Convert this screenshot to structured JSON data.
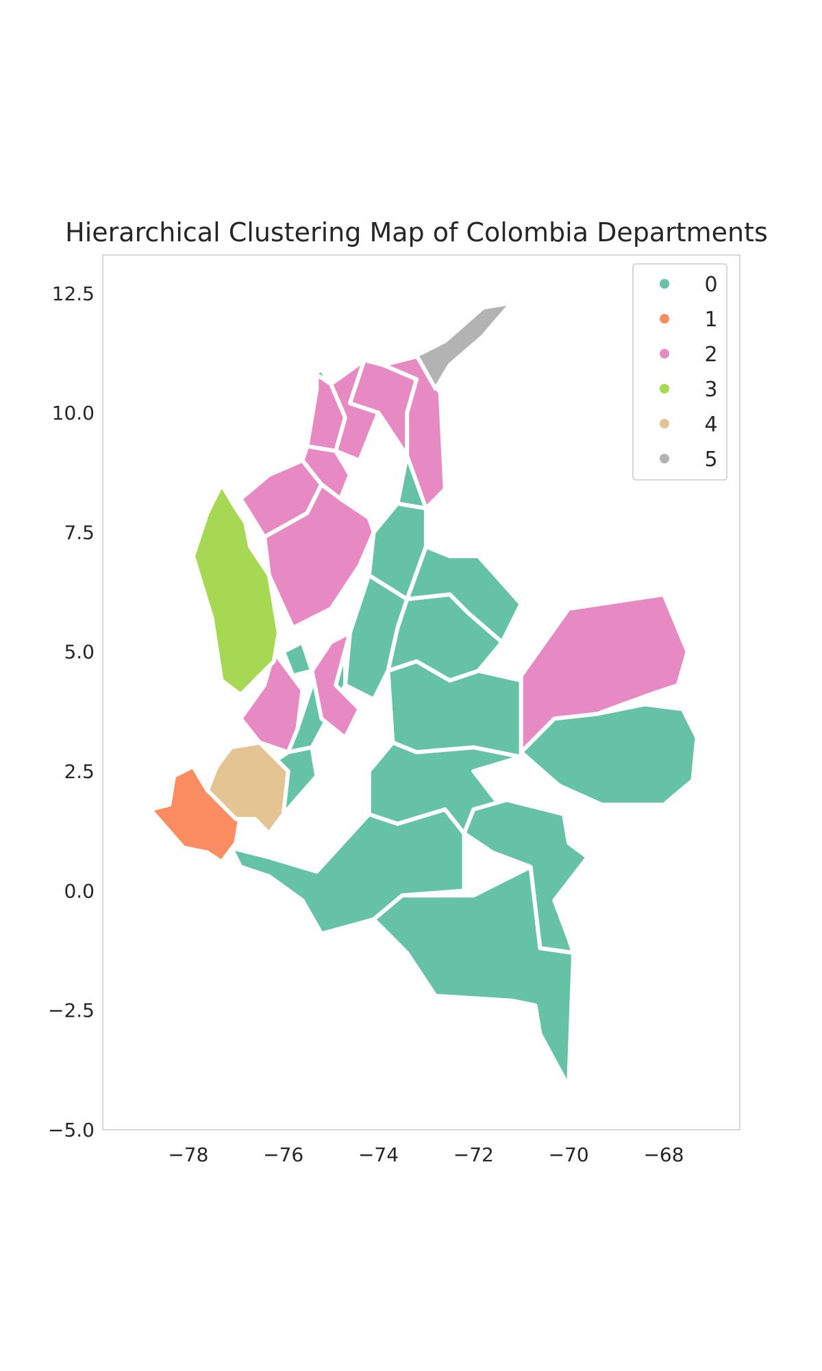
{
  "chart_data": {
    "type": "map",
    "title": "Hierarchical Clustering Map of Colombia Departments",
    "xlabel": "",
    "ylabel": "",
    "xlim": [
      -79.8,
      -66.4
    ],
    "ylim": [
      -5.0,
      13.3
    ],
    "x_ticks": [
      {
        "value": -78,
        "label": "−78"
      },
      {
        "value": -76,
        "label": "−76"
      },
      {
        "value": -74,
        "label": "−74"
      },
      {
        "value": -72,
        "label": "−72"
      },
      {
        "value": -70,
        "label": "−70"
      },
      {
        "value": -68,
        "label": "−68"
      }
    ],
    "y_ticks": [
      {
        "value": -5.0,
        "label": "−5.0"
      },
      {
        "value": -2.5,
        "label": "−2.5"
      },
      {
        "value": 0.0,
        "label": "0.0"
      },
      {
        "value": 2.5,
        "label": "2.5"
      },
      {
        "value": 5.0,
        "label": "5.0"
      },
      {
        "value": 7.5,
        "label": "7.5"
      },
      {
        "value": 10.0,
        "label": "10.0"
      },
      {
        "value": 12.5,
        "label": "12.5"
      }
    ],
    "grid": false,
    "legend_position": "top-right",
    "clusters": [
      {
        "label": "0",
        "color": "#66c2a5"
      },
      {
        "label": "1",
        "color": "#fc8d62"
      },
      {
        "label": "2",
        "color": "#e78ac3"
      },
      {
        "label": "3",
        "color": "#a6d854"
      },
      {
        "label": "4",
        "color": "#e5c494"
      },
      {
        "label": "5",
        "color": "#b3b3b3"
      }
    ],
    "regions": [
      {
        "cluster": 0,
        "coords": [
          [
            -75.6,
            -0.2
          ],
          [
            -75.2,
            -0.9
          ],
          [
            -74.1,
            -0.6
          ],
          [
            -73.5,
            -0.1
          ],
          [
            -72.2,
            0.0
          ],
          [
            -72.2,
            1.2
          ],
          [
            -72.6,
            1.7
          ],
          [
            -73.6,
            1.4
          ],
          [
            -74.2,
            1.6
          ],
          [
            -75.3,
            0.4
          ],
          [
            -76.3,
            0.7
          ],
          [
            -77.1,
            0.9
          ],
          [
            -76.9,
            0.5
          ],
          [
            -76.3,
            0.3
          ],
          [
            -75.6,
            -0.2
          ]
        ]
      },
      {
        "cluster": 0,
        "coords": [
          [
            -74.1,
            -0.6
          ],
          [
            -73.4,
            -1.3
          ],
          [
            -72.8,
            -2.2
          ],
          [
            -71.2,
            -2.3
          ],
          [
            -70.7,
            -2.4
          ],
          [
            -70.6,
            -3.0
          ],
          [
            -70.0,
            -4.1
          ],
          [
            -69.9,
            -1.3
          ],
          [
            -70.6,
            -1.2
          ],
          [
            -70.8,
            0.5
          ],
          [
            -72.0,
            -0.1
          ],
          [
            -73.5,
            -0.1
          ],
          [
            -74.1,
            -0.6
          ]
        ]
      },
      {
        "cluster": 0,
        "coords": [
          [
            -74.2,
            1.6
          ],
          [
            -73.6,
            1.4
          ],
          [
            -72.6,
            1.7
          ],
          [
            -72.2,
            1.2
          ],
          [
            -71.6,
            0.8
          ],
          [
            -71.3,
            1.6
          ],
          [
            -72.0,
            2.5
          ],
          [
            -71.0,
            2.8
          ],
          [
            -72.0,
            3.0
          ],
          [
            -73.2,
            2.9
          ],
          [
            -73.7,
            3.1
          ],
          [
            -74.2,
            2.5
          ],
          [
            -74.2,
            1.6
          ]
        ]
      },
      {
        "cluster": 0,
        "coords": [
          [
            -72.2,
            1.2
          ],
          [
            -71.6,
            0.8
          ],
          [
            -70.8,
            0.5
          ],
          [
            -70.6,
            -1.2
          ],
          [
            -69.9,
            -1.3
          ],
          [
            -70.0,
            -1.0
          ],
          [
            -70.3,
            -0.2
          ],
          [
            -69.6,
            0.7
          ],
          [
            -70.0,
            1.0
          ],
          [
            -70.1,
            1.6
          ],
          [
            -71.3,
            1.9
          ],
          [
            -72.0,
            1.7
          ],
          [
            -72.2,
            1.2
          ]
        ]
      },
      {
        "cluster": 0,
        "coords": [
          [
            -73.7,
            3.1
          ],
          [
            -73.2,
            2.9
          ],
          [
            -72.0,
            3.0
          ],
          [
            -71.0,
            2.8
          ],
          [
            -71.0,
            4.4
          ],
          [
            -71.9,
            4.6
          ],
          [
            -72.5,
            4.4
          ],
          [
            -73.2,
            4.8
          ],
          [
            -73.8,
            4.6
          ],
          [
            -73.7,
            3.1
          ]
        ]
      },
      {
        "cluster": 0,
        "coords": [
          [
            -71.0,
            2.9
          ],
          [
            -70.2,
            2.2
          ],
          [
            -69.3,
            1.8
          ],
          [
            -68.0,
            1.8
          ],
          [
            -67.4,
            2.3
          ],
          [
            -67.2,
            1.9
          ],
          [
            -67.0,
            1.3
          ],
          [
            -67.4,
            2.2
          ],
          [
            -67.3,
            3.2
          ],
          [
            -67.6,
            3.8
          ],
          [
            -68.4,
            3.9
          ],
          [
            -69.4,
            3.7
          ],
          [
            -70.3,
            3.6
          ],
          [
            -71.0,
            2.9
          ]
        ]
      },
      {
        "cluster": 0,
        "coords": [
          [
            -73.8,
            4.6
          ],
          [
            -73.2,
            4.8
          ],
          [
            -72.5,
            4.4
          ],
          [
            -71.9,
            4.6
          ],
          [
            -71.4,
            5.2
          ],
          [
            -72.1,
            5.8
          ],
          [
            -72.5,
            6.2
          ],
          [
            -73.4,
            6.1
          ],
          [
            -73.6,
            5.5
          ],
          [
            -73.8,
            4.6
          ]
        ]
      },
      {
        "cluster": 0,
        "coords": [
          [
            -73.4,
            6.1
          ],
          [
            -72.5,
            6.2
          ],
          [
            -72.1,
            5.8
          ],
          [
            -71.4,
            5.2
          ],
          [
            -71.0,
            6.0
          ],
          [
            -71.9,
            7.0
          ],
          [
            -72.5,
            7.0
          ],
          [
            -73.0,
            7.2
          ],
          [
            -73.4,
            6.1
          ]
        ]
      },
      {
        "cluster": 0,
        "coords": [
          [
            -74.7,
            4.3
          ],
          [
            -74.1,
            4.0
          ],
          [
            -73.8,
            4.6
          ],
          [
            -73.6,
            5.5
          ],
          [
            -73.4,
            6.1
          ],
          [
            -74.2,
            6.6
          ],
          [
            -74.6,
            5.4
          ],
          [
            -74.7,
            4.3
          ]
        ]
      },
      {
        "cluster": 0,
        "coords": [
          [
            -74.2,
            6.6
          ],
          [
            -73.4,
            6.1
          ],
          [
            -73.0,
            7.2
          ],
          [
            -73.0,
            8.0
          ],
          [
            -73.6,
            8.1
          ],
          [
            -74.1,
            7.5
          ],
          [
            -74.2,
            6.6
          ]
        ]
      },
      {
        "cluster": 0,
        "coords": [
          [
            -73.6,
            8.1
          ],
          [
            -73.0,
            8.0
          ],
          [
            -72.6,
            8.4
          ],
          [
            -72.7,
            9.2
          ],
          [
            -73.4,
            9.1
          ],
          [
            -73.6,
            8.1
          ]
        ]
      },
      {
        "cluster": 0,
        "coords": [
          [
            -75.9,
            2.9
          ],
          [
            -75.4,
            3.0
          ],
          [
            -74.7,
            4.3
          ],
          [
            -74.7,
            5.1
          ],
          [
            -75.2,
            4.9
          ],
          [
            -75.7,
            3.4
          ],
          [
            -75.9,
            2.9
          ]
        ]
      },
      {
        "cluster": 0,
        "coords": [
          [
            -76.3,
            1.2
          ],
          [
            -76.0,
            1.6
          ],
          [
            -75.3,
            2.4
          ],
          [
            -75.4,
            3.0
          ],
          [
            -75.9,
            2.9
          ],
          [
            -76.5,
            2.5
          ],
          [
            -76.3,
            1.2
          ]
        ]
      },
      {
        "cluster": 0,
        "coords": [
          [
            -76.0,
            5.0
          ],
          [
            -75.6,
            5.2
          ],
          [
            -75.4,
            4.6
          ],
          [
            -75.8,
            4.5
          ],
          [
            -76.0,
            5.0
          ]
        ]
      },
      {
        "cluster": 0,
        "coords": [
          [
            -75.4,
            10.8
          ],
          [
            -75.2,
            10.9
          ],
          [
            -75.0,
            10.6
          ],
          [
            -75.3,
            10.5
          ],
          [
            -75.4,
            10.8
          ]
        ]
      },
      {
        "cluster": 1,
        "coords": [
          [
            -78.8,
            1.7
          ],
          [
            -78.4,
            1.8
          ],
          [
            -78.3,
            2.4
          ],
          [
            -77.9,
            2.6
          ],
          [
            -77.6,
            2.1
          ],
          [
            -76.9,
            1.6
          ],
          [
            -77.0,
            1.0
          ],
          [
            -77.3,
            0.6
          ],
          [
            -77.6,
            0.8
          ],
          [
            -78.1,
            0.9
          ],
          [
            -78.8,
            1.7
          ]
        ]
      },
      {
        "cluster": 2,
        "coords": [
          [
            -75.3,
            10.8
          ],
          [
            -75.0,
            10.6
          ],
          [
            -74.7,
            9.9
          ],
          [
            -74.9,
            9.2
          ],
          [
            -75.5,
            9.3
          ],
          [
            -75.3,
            10.5
          ],
          [
            -75.3,
            10.8
          ]
        ]
      },
      {
        "cluster": 2,
        "coords": [
          [
            -75.0,
            10.6
          ],
          [
            -74.3,
            11.1
          ],
          [
            -74.6,
            10.2
          ],
          [
            -74.0,
            10.0
          ],
          [
            -74.4,
            9.0
          ],
          [
            -74.9,
            9.2
          ],
          [
            -74.7,
            9.9
          ],
          [
            -75.0,
            10.6
          ]
        ]
      },
      {
        "cluster": 2,
        "coords": [
          [
            -74.3,
            11.1
          ],
          [
            -73.9,
            11.0
          ],
          [
            -73.2,
            10.7
          ],
          [
            -73.4,
            10.0
          ],
          [
            -73.4,
            9.1
          ],
          [
            -74.0,
            10.0
          ],
          [
            -74.6,
            10.2
          ],
          [
            -74.3,
            11.1
          ]
        ]
      },
      {
        "cluster": 2,
        "coords": [
          [
            -73.9,
            11.0
          ],
          [
            -73.1,
            11.2
          ],
          [
            -72.7,
            10.4
          ],
          [
            -72.6,
            8.4
          ],
          [
            -73.0,
            8.0
          ],
          [
            -73.4,
            9.1
          ],
          [
            -73.4,
            10.0
          ],
          [
            -73.2,
            10.7
          ],
          [
            -73.9,
            11.0
          ]
        ]
      },
      {
        "cluster": 2,
        "coords": [
          [
            -75.5,
            9.3
          ],
          [
            -74.9,
            9.2
          ],
          [
            -74.6,
            8.7
          ],
          [
            -74.8,
            8.2
          ],
          [
            -75.2,
            8.5
          ],
          [
            -75.6,
            9.0
          ],
          [
            -75.5,
            9.3
          ]
        ]
      },
      {
        "cluster": 2,
        "coords": [
          [
            -76.9,
            8.2
          ],
          [
            -76.3,
            8.7
          ],
          [
            -75.6,
            9.0
          ],
          [
            -75.2,
            8.5
          ],
          [
            -75.5,
            7.9
          ],
          [
            -76.4,
            7.4
          ],
          [
            -76.9,
            8.2
          ]
        ]
      },
      {
        "cluster": 2,
        "coords": [
          [
            -75.2,
            8.5
          ],
          [
            -74.8,
            8.2
          ],
          [
            -74.2,
            7.8
          ],
          [
            -74.1,
            7.5
          ],
          [
            -74.4,
            6.8
          ],
          [
            -75.0,
            5.9
          ],
          [
            -75.8,
            5.5
          ],
          [
            -76.3,
            6.6
          ],
          [
            -76.4,
            7.4
          ],
          [
            -75.5,
            7.9
          ],
          [
            -75.2,
            8.5
          ]
        ]
      },
      {
        "cluster": 2,
        "coords": [
          [
            -74.6,
            5.4
          ],
          [
            -74.9,
            4.3
          ],
          [
            -74.4,
            3.8
          ],
          [
            -74.7,
            3.2
          ],
          [
            -75.2,
            3.6
          ],
          [
            -75.4,
            4.6
          ],
          [
            -75.0,
            5.2
          ],
          [
            -74.6,
            5.4
          ]
        ]
      },
      {
        "cluster": 2,
        "coords": [
          [
            -76.5,
            3.1
          ],
          [
            -75.9,
            2.9
          ],
          [
            -75.7,
            3.4
          ],
          [
            -75.6,
            4.2
          ],
          [
            -75.9,
            4.6
          ],
          [
            -76.2,
            5.0
          ],
          [
            -76.4,
            4.3
          ],
          [
            -76.9,
            3.6
          ],
          [
            -76.5,
            3.1
          ]
        ]
      },
      {
        "cluster": 2,
        "coords": [
          [
            -71.0,
            4.5
          ],
          [
            -70.0,
            5.9
          ],
          [
            -68.0,
            6.2
          ],
          [
            -67.5,
            5.0
          ],
          [
            -67.7,
            4.3
          ],
          [
            -68.3,
            4.1
          ],
          [
            -69.4,
            3.7
          ],
          [
            -70.3,
            3.6
          ],
          [
            -71.0,
            2.9
          ],
          [
            -71.0,
            4.5
          ]
        ]
      },
      {
        "cluster": 3,
        "coords": [
          [
            -77.3,
            8.5
          ],
          [
            -77.0,
            8.0
          ],
          [
            -76.8,
            7.7
          ],
          [
            -76.7,
            7.2
          ],
          [
            -76.3,
            6.6
          ],
          [
            -76.1,
            5.4
          ],
          [
            -76.2,
            4.8
          ],
          [
            -76.9,
            4.1
          ],
          [
            -77.3,
            4.4
          ],
          [
            -77.5,
            5.7
          ],
          [
            -77.9,
            7.0
          ],
          [
            -77.6,
            7.9
          ],
          [
            -77.3,
            8.5
          ]
        ]
      },
      {
        "cluster": 4,
        "coords": [
          [
            -77.1,
            3.0
          ],
          [
            -76.5,
            3.1
          ],
          [
            -75.9,
            2.5
          ],
          [
            -76.0,
            1.6
          ],
          [
            -76.3,
            1.2
          ],
          [
            -76.6,
            1.5
          ],
          [
            -77.0,
            1.5
          ],
          [
            -77.6,
            2.1
          ],
          [
            -77.4,
            2.6
          ],
          [
            -77.1,
            3.0
          ]
        ]
      },
      {
        "cluster": 5,
        "coords": [
          [
            -73.2,
            11.2
          ],
          [
            -72.6,
            11.5
          ],
          [
            -71.8,
            12.2
          ],
          [
            -71.2,
            12.3
          ],
          [
            -71.8,
            11.6
          ],
          [
            -72.5,
            11.0
          ],
          [
            -72.8,
            10.5
          ],
          [
            -73.2,
            11.2
          ]
        ]
      }
    ]
  }
}
